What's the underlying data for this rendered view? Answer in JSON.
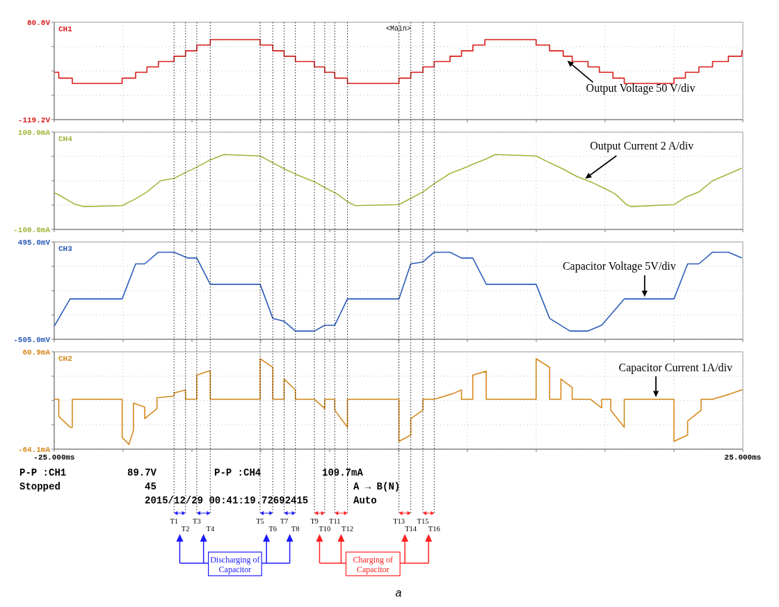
{
  "chart_data": [
    {
      "type": "step",
      "series": [
        {
          "name": "CH1",
          "color": "#d81e1e",
          "x": [
            -25,
            -24.67,
            -23.69,
            -20.07,
            -19.09,
            -18.27,
            -17.44,
            -16.3,
            -15.47,
            -14.65,
            -13.67,
            -10.05,
            -9.13,
            -8.31,
            -7.49,
            -6.11,
            -5.36,
            -4.63,
            -3.71,
            0.03,
            0.89,
            1.77,
            2.59,
            3.74,
            4.57,
            5.4,
            6.27,
            9.99,
            10.97,
            11.96,
            12.61,
            13.76,
            14.58,
            15.57,
            16.39,
            20,
            20.83,
            21.81,
            22.8,
            23.95,
            24.93,
            25
          ],
          "values": [
            -22,
            -34,
            -45,
            -34,
            -22,
            -11,
            0,
            11,
            22,
            34,
            45,
            34,
            22,
            11,
            0,
            -11,
            -22,
            -34,
            -45,
            -34,
            -22,
            -11,
            0,
            11,
            22,
            34,
            45,
            34,
            22,
            11,
            0,
            -11,
            -22,
            -34,
            -45,
            -34,
            -22,
            -11,
            0,
            11,
            22,
            22
          ]
        }
      ],
      "xlim": [
        -25,
        25
      ],
      "xticks": [
        {
          "value": -25,
          "label": null
        },
        {
          "value": -20,
          "label": null
        },
        {
          "value": -15,
          "label": null
        },
        {
          "value": -10,
          "label": null
        },
        {
          "value": -5,
          "label": null
        },
        {
          "value": 0,
          "label": null
        },
        {
          "value": 5,
          "label": null
        },
        {
          "value": 10,
          "label": null
        },
        {
          "value": 15,
          "label": null
        },
        {
          "value": 20,
          "label": null
        },
        {
          "value": 25,
          "label": null
        }
      ],
      "ylim": [
        -119.2,
        80.8
      ],
      "yticks": [
        {
          "value": 80.8,
          "label": "80.8V"
        },
        {
          "value": 30.8,
          "label": null
        },
        {
          "value": -19.2,
          "label": null
        },
        {
          "value": -69.2,
          "label": null
        },
        {
          "value": -119.2,
          "label": "-119.2V"
        }
      ],
      "grid": true,
      "tick_labels": "y",
      "annotations": [
        "<Main>",
        {
          "text": "Output Voltage 50 V/div",
          "x": 12.1,
          "y": 6
        }
      ]
    },
    {
      "type": "line",
      "series": [
        {
          "name": "CH4",
          "color": "#a4b43c",
          "x": [
            -25,
            -24.67,
            -23.52,
            -22.9,
            -20.07,
            -19.09,
            -18.27,
            -17.28,
            -16.3,
            -15.47,
            -14.65,
            -13.67,
            -12.68,
            -10.05,
            -9.13,
            -8.25,
            -7.43,
            -6.11,
            -5.29,
            -4.47,
            -3.65,
            -3.15,
            0.03,
            0.89,
            1.77,
            2.59,
            3.74,
            4.57,
            5.39,
            6.37,
            7.03,
            9.99,
            10.97,
            11.96,
            12.94,
            13.93,
            14.91,
            15.73,
            16.56,
            16.88,
            20,
            20.83,
            21.81,
            22.8,
            23.95,
            24.93
          ],
          "values": [
            -25,
            -29,
            -48,
            -53,
            -51,
            -37,
            -23,
            0,
            5,
            17,
            28,
            43,
            54,
            51,
            37,
            24,
            13,
            -2,
            -15,
            -27,
            -44,
            -51,
            -49,
            -36,
            -23,
            -6,
            15,
            24,
            34,
            45,
            54,
            51,
            37,
            24,
            9,
            -2,
            -15,
            -27,
            -49,
            -53,
            -49,
            -34,
            -23,
            0,
            14,
            26
          ]
        }
      ],
      "xlim": [
        -25,
        25
      ],
      "xticks": [
        {
          "value": -25,
          "label": null
        },
        {
          "value": -20,
          "label": null
        },
        {
          "value": -15,
          "label": null
        },
        {
          "value": -10,
          "label": null
        },
        {
          "value": -5,
          "label": null
        },
        {
          "value": 0,
          "label": null
        },
        {
          "value": 5,
          "label": null
        },
        {
          "value": 10,
          "label": null
        },
        {
          "value": 15,
          "label": null
        },
        {
          "value": 20,
          "label": null
        },
        {
          "value": 25,
          "label": null
        }
      ],
      "ylim": [
        -100,
        100
      ],
      "yticks": [
        {
          "value": 100,
          "label": "100.0mA"
        },
        {
          "value": 50,
          "label": null
        },
        {
          "value": 0,
          "label": null
        },
        {
          "value": -50,
          "label": null
        },
        {
          "value": -100,
          "label": "-100.0mA"
        }
      ],
      "grid": true,
      "tick_labels": "y",
      "annotations": [
        {
          "text": "Output Current 2 A/div",
          "x": 13.4,
          "y": 0
        }
      ]
    },
    {
      "type": "line",
      "series": [
        {
          "name": "CH3",
          "color": "#2b5cb8",
          "x": [
            -25,
            -23.85,
            -20.07,
            -19.09,
            -18.43,
            -17.44,
            -16.3,
            -15.31,
            -14.65,
            -13.67,
            -10.05,
            -9.13,
            -8.31,
            -7.49,
            -6.11,
            -5.36,
            -4.63,
            -3.71,
            0.03,
            0.89,
            1.77,
            2.59,
            3.74,
            4.57,
            5.39,
            6.37,
            9.99,
            10.97,
            12.45,
            13.76,
            14.75,
            16.39,
            20,
            20.99,
            21.81,
            22.8,
            23.95,
            24.93
          ],
          "values": [
            -370,
            -90,
            -90,
            270,
            270,
            390,
            390,
            330,
            330,
            60,
            60,
            -290,
            -320,
            -420,
            -420,
            -360,
            -360,
            -90,
            -90,
            270,
            290,
            390,
            390,
            330,
            330,
            60,
            60,
            -290,
            -420,
            -420,
            -360,
            -90,
            -90,
            270,
            270,
            390,
            390,
            330
          ]
        }
      ],
      "xlim": [
        -25,
        25
      ],
      "xticks": [
        {
          "value": -25,
          "label": null
        },
        {
          "value": -20,
          "label": null
        },
        {
          "value": -15,
          "label": null
        },
        {
          "value": -10,
          "label": null
        },
        {
          "value": -5,
          "label": null
        },
        {
          "value": 0,
          "label": null
        },
        {
          "value": 5,
          "label": null
        },
        {
          "value": 10,
          "label": null
        },
        {
          "value": 15,
          "label": null
        },
        {
          "value": 20,
          "label": null
        },
        {
          "value": 25,
          "label": null
        }
      ],
      "ylim": [
        -505,
        495
      ],
      "yticks": [
        {
          "value": 495,
          "label": "495.0mV"
        },
        {
          "value": 245,
          "label": null
        },
        {
          "value": -5,
          "label": null
        },
        {
          "value": -255,
          "label": null
        },
        {
          "value": -505,
          "label": "-505.0mV"
        }
      ],
      "grid": true,
      "tick_labels": "y",
      "annotations": [
        {
          "text": "Capacitor Voltage 5V/div",
          "x": 17.87,
          "y": -90
        }
      ]
    },
    {
      "type": "line",
      "series": [
        {
          "name": "CH2",
          "color": "#d4891c",
          "x": [
            -25,
            -24.67,
            -24.67,
            -23.85,
            -23.69,
            -23.69,
            -20.07,
            -20.07,
            -19.58,
            -19.25,
            -19.25,
            -18.43,
            -18.43,
            -17.54,
            -17.54,
            -16.3,
            -16.3,
            -15.47,
            -15.47,
            -14.65,
            -14.65,
            -13.83,
            -13.67,
            -13.67,
            -10.05,
            -10.05,
            -9.13,
            -9.13,
            -8.31,
            -8.31,
            -7.49,
            -7.49,
            -6.11,
            -5.36,
            -5.36,
            -4.63,
            -4.63,
            -3.71,
            -3.71,
            0.03,
            0.03,
            0.89,
            0.89,
            1.77,
            1.77,
            2.59,
            3.91,
            4.57,
            4.57,
            5.39,
            5.39,
            6.37,
            6.37,
            9.99,
            9.99,
            10.97,
            10.97,
            11.79,
            11.79,
            12.61,
            12.61,
            13.93,
            14.75,
            14.75,
            15.41,
            15.41,
            16.39,
            16.39,
            20,
            20,
            20.99,
            20.99,
            21.97,
            21.97,
            22.8,
            24.11,
            24.93,
            25
          ],
          "values": [
            0,
            0,
            -22,
            -36,
            -36,
            0,
            0,
            -49,
            -58,
            -40,
            -5,
            -10,
            -25,
            -12,
            2,
            4,
            8,
            12,
            0,
            0,
            31,
            36,
            36,
            0,
            0,
            52,
            41,
            0,
            0,
            26,
            12,
            0,
            0,
            -12,
            0,
            0,
            -14,
            -36,
            0,
            0,
            -54,
            -46,
            -25,
            -14,
            0,
            0,
            7,
            12,
            0,
            0,
            31,
            36,
            0,
            0,
            52,
            41,
            0,
            0,
            26,
            15,
            0,
            0,
            -11,
            0,
            0,
            -14,
            -36,
            0,
            0,
            -54,
            -46,
            -28,
            -14,
            0,
            0,
            7,
            12,
            12
          ]
        }
      ],
      "xlim": [
        -25,
        25
      ],
      "xticks": [
        {
          "value": -25,
          "label": "-25.000ms"
        },
        {
          "value": -20,
          "label": null
        },
        {
          "value": -15,
          "label": null
        },
        {
          "value": -10,
          "label": null
        },
        {
          "value": -5,
          "label": null
        },
        {
          "value": 0,
          "label": null
        },
        {
          "value": 5,
          "label": null
        },
        {
          "value": 10,
          "label": null
        },
        {
          "value": 15,
          "label": null
        },
        {
          "value": 20,
          "label": null
        },
        {
          "value": 25,
          "label": "25.000ms"
        }
      ],
      "ylim": [
        -64.1,
        60.9
      ],
      "yticks": [
        {
          "value": 60.9,
          "label": "60.9mA"
        },
        {
          "value": 29.65,
          "label": null
        },
        {
          "value": -1.6,
          "label": null
        },
        {
          "value": -32.85,
          "label": null
        },
        {
          "value": -64.1,
          "label": "-64.1mA"
        }
      ],
      "grid": true,
      "ref_lines": [
        {
          "axis": "x",
          "value": -16.3,
          "label": "T1",
          "line_style": "dotted"
        },
        {
          "axis": "x",
          "value": -15.47,
          "label": "T2",
          "line_style": "dotted"
        },
        {
          "axis": "x",
          "value": -14.65,
          "label": "T3",
          "line_style": "dotted"
        },
        {
          "axis": "x",
          "value": -13.67,
          "label": "T4",
          "line_style": "dotted"
        },
        {
          "axis": "x",
          "value": -10.05,
          "label": "T5",
          "line_style": "dotted"
        },
        {
          "axis": "x",
          "value": -9.13,
          "label": "T6",
          "line_style": "dotted"
        },
        {
          "axis": "x",
          "value": -8.31,
          "label": "T7",
          "line_style": "dotted"
        },
        {
          "axis": "x",
          "value": -7.49,
          "label": "T8",
          "line_style": "dotted"
        },
        {
          "axis": "x",
          "value": -6.11,
          "label": "T9",
          "line_style": "dotted"
        },
        {
          "axis": "x",
          "value": -5.36,
          "label": "T10",
          "line_style": "dotted"
        },
        {
          "axis": "x",
          "value": -4.63,
          "label": "T11",
          "line_style": "dotted"
        },
        {
          "axis": "x",
          "value": -3.71,
          "label": "T12",
          "line_style": "dotted"
        },
        {
          "axis": "x",
          "value": 0.03,
          "label": "T13",
          "line_style": "dotted"
        },
        {
          "axis": "x",
          "value": 0.89,
          "label": "T14",
          "line_style": "dotted"
        },
        {
          "axis": "x",
          "value": 1.77,
          "label": "T15",
          "line_style": "dotted"
        },
        {
          "axis": "x",
          "value": 2.59,
          "label": "T16",
          "line_style": "dotted"
        }
      ],
      "annotations": [
        "P-P :CH1",
        "89.7V",
        "P-P :CH4",
        "109.7mA",
        "Stopped",
        "45",
        "2015/12/29 00:41:19.72692415",
        "A → B(N)",
        "Auto",
        {
          "text": "Capacitor Current 1A/div",
          "x": 18.69,
          "y": 0
        },
        "Discharging of Capacitor",
        "Charging of Capacitor",
        "a"
      ]
    }
  ]
}
